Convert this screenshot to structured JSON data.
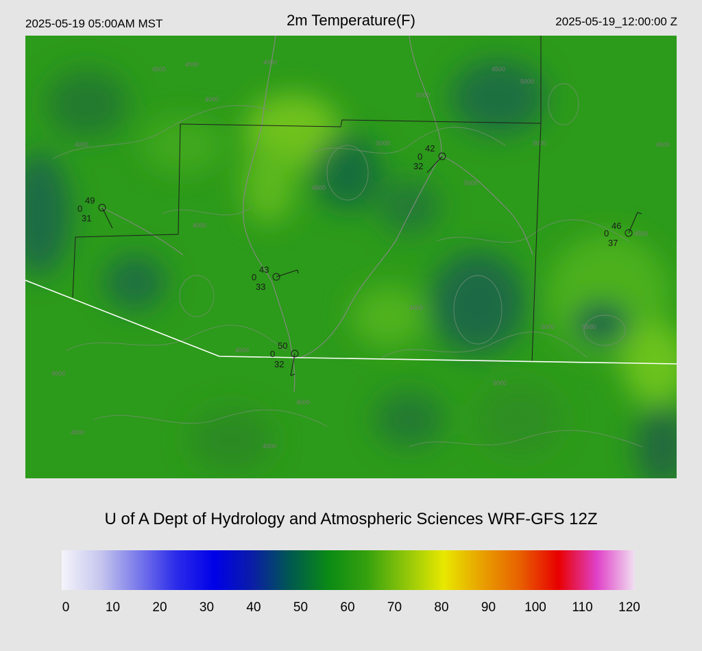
{
  "header": {
    "local_time": "2025-05-19 05:00AM MST",
    "title": "2m Temperature(F)",
    "utc_time": "2025-05-19_12:00:00 Z"
  },
  "credit": "U of A Dept of Hydrology and Atmospheric Sciences WRF-GFS 12Z",
  "colors": {
    "background": "#e5e5e5",
    "map_base": "#2c9a1a",
    "border_line": "#1e1e1e",
    "intl_border": "#ffffff",
    "river": "#8a8a8a",
    "contour": "#7a8f78"
  },
  "stations": [
    {
      "temp": "49",
      "cloud": "0",
      "dewpoint": "31"
    },
    {
      "temp": "42",
      "cloud": "0",
      "dewpoint": "32"
    },
    {
      "temp": "46",
      "cloud": "0",
      "dewpoint": "37"
    },
    {
      "temp": "43",
      "cloud": "0",
      "dewpoint": "33"
    },
    {
      "temp": "50",
      "cloud": "0",
      "dewpoint": "32"
    }
  ],
  "contour_labels": [
    "4500",
    "4000",
    "4000",
    "4500",
    "4000",
    "5000",
    "4500",
    "5000",
    "5000",
    "4500",
    "4000",
    "5000",
    "5000",
    "4500",
    "4500",
    "5500",
    "4000",
    "5000",
    "4500",
    "5000",
    "4000",
    "4500",
    "4000",
    "4000"
  ],
  "colorbar": {
    "ticks": [
      "0",
      "10",
      "20",
      "30",
      "40",
      "50",
      "60",
      "70",
      "80",
      "90",
      "100",
      "110",
      "120"
    ],
    "stops": [
      "#f4f4fb",
      "#c7c7ee",
      "#7a7aeb",
      "#2b2bea",
      "#0000e8",
      "#0a1ea6",
      "#005a4e",
      "#0b8b14",
      "#36a10e",
      "#8fc60a",
      "#e8e800",
      "#e8a000",
      "#e86000",
      "#e80000",
      "#e040c8",
      "#f0e0f0"
    ]
  }
}
